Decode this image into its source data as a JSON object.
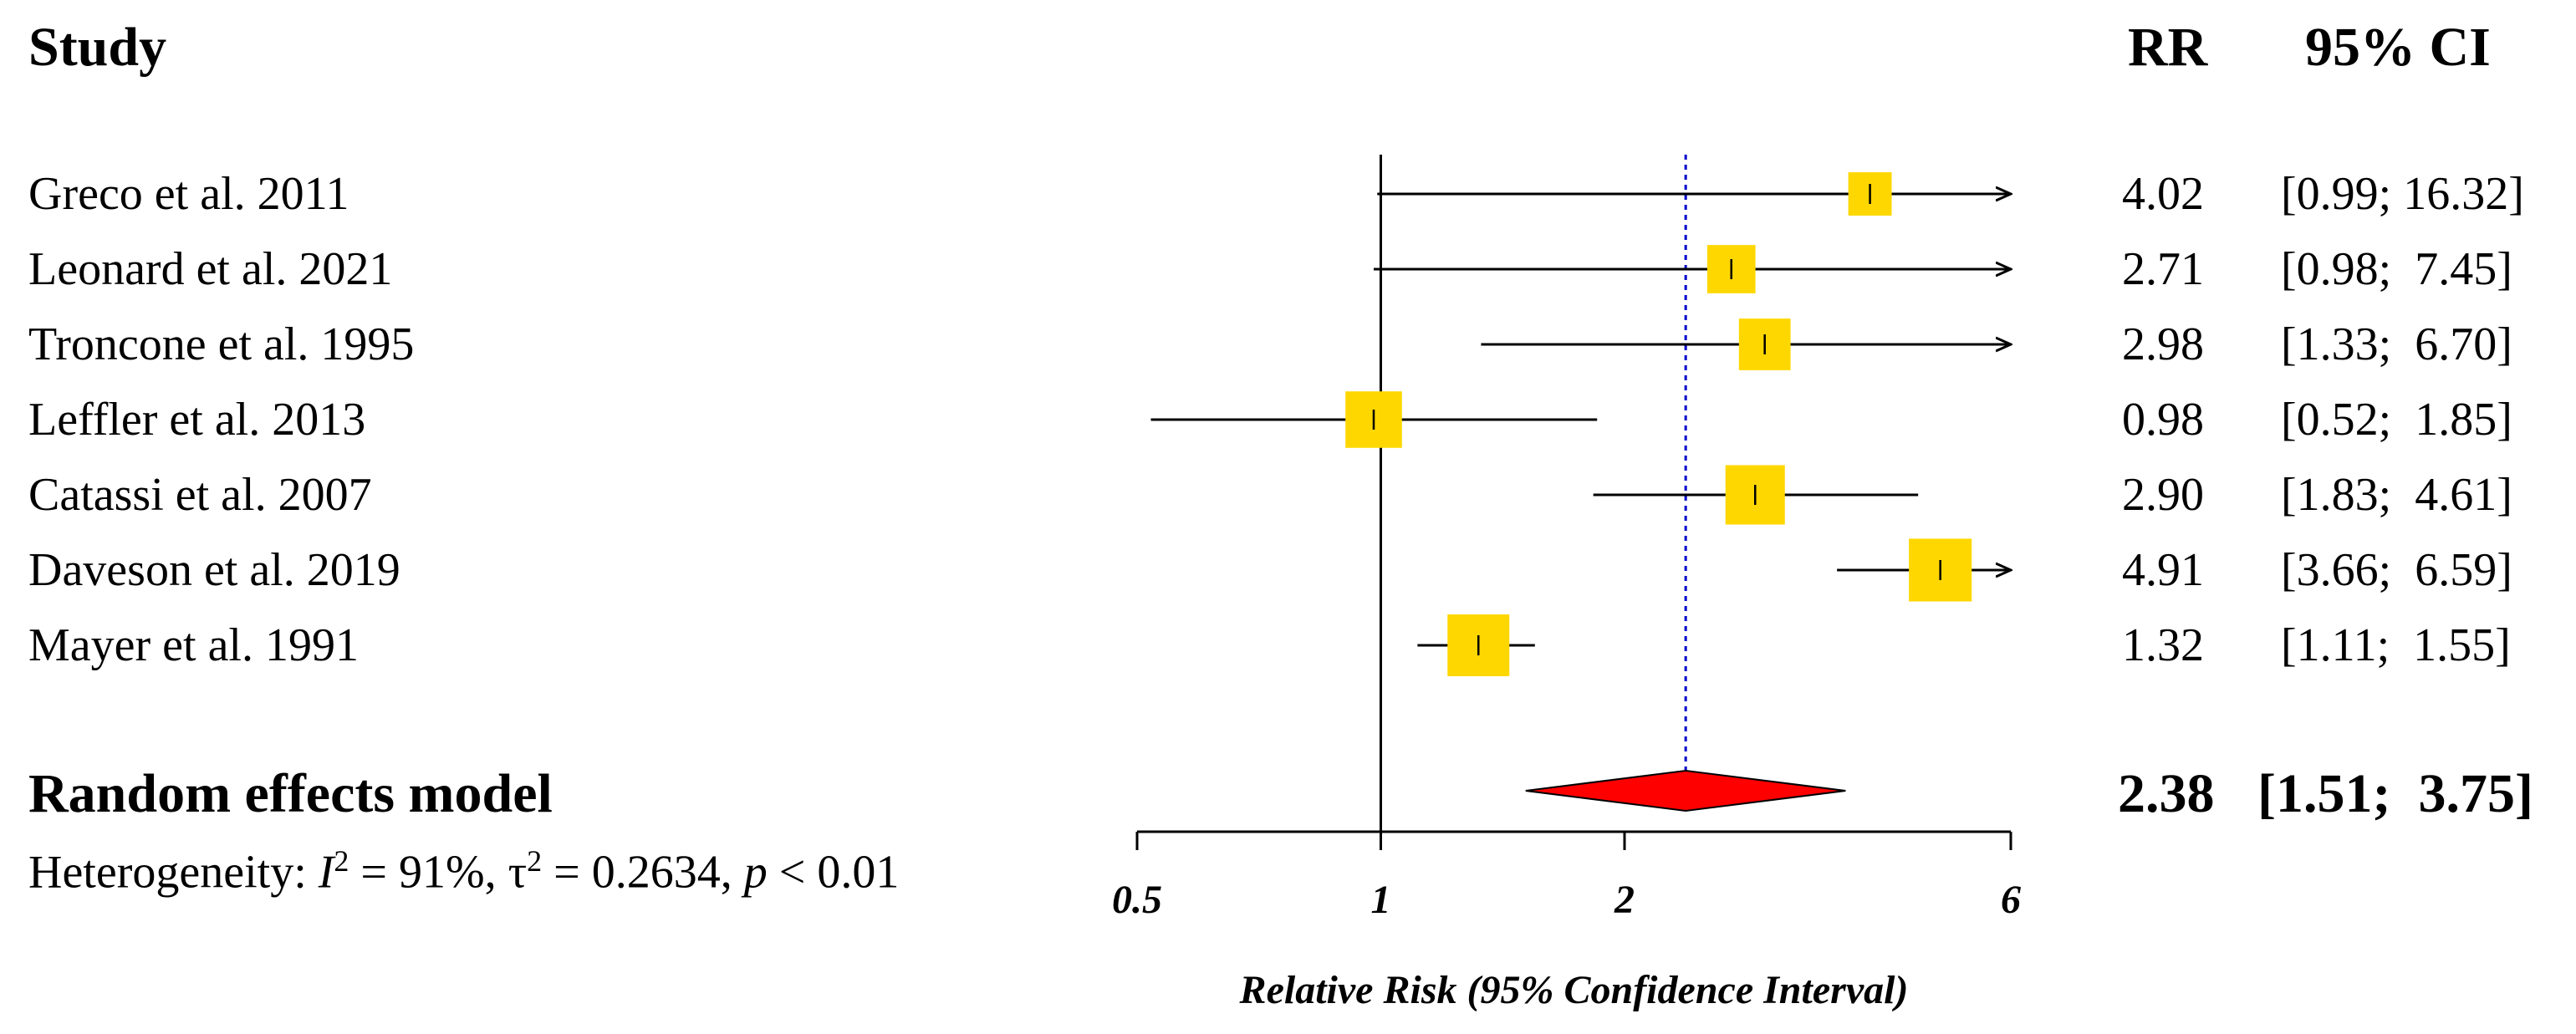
{
  "chart_data": {
    "type": "forest",
    "headers": {
      "study": "Study",
      "rr": "RR",
      "ci": "95% CI"
    },
    "studies": [
      {
        "name": "Greco et al. 2011",
        "rr": 4.02,
        "lower": 0.99,
        "upper": 16.32,
        "rr_text": "4.02",
        "ci_text": "[0.99; 16.32]",
        "weight": 0.55
      },
      {
        "name": "Leonard et al. 2021",
        "rr": 2.71,
        "lower": 0.98,
        "upper": 7.45,
        "rr_text": "2.71",
        "ci_text": "[0.98;  7.45]",
        "weight": 0.65
      },
      {
        "name": "Troncone et al. 1995",
        "rr": 2.98,
        "lower": 1.33,
        "upper": 6.7,
        "rr_text": "2.98",
        "ci_text": "[1.33;  6.70]",
        "weight": 0.72
      },
      {
        "name": "Leffler et al. 2013",
        "rr": 0.98,
        "lower": 0.52,
        "upper": 1.85,
        "rr_text": "0.98",
        "ci_text": "[0.52;  1.85]",
        "weight": 0.82
      },
      {
        "name": "Catassi et al. 2007",
        "rr": 2.9,
        "lower": 1.83,
        "upper": 4.61,
        "rr_text": "2.90",
        "ci_text": "[1.83;  4.61]",
        "weight": 0.88
      },
      {
        "name": "Daveson et al. 2019",
        "rr": 4.91,
        "lower": 3.66,
        "upper": 6.59,
        "rr_text": "4.91",
        "ci_text": "[3.66;  6.59]",
        "weight": 0.95
      },
      {
        "name": "Mayer et al. 1991",
        "rr": 1.32,
        "lower": 1.11,
        "upper": 1.55,
        "rr_text": "1.32",
        "ci_text": "[1.11;  1.55]",
        "weight": 0.93
      }
    ],
    "pooled": {
      "label": "Random effects model",
      "rr": 2.38,
      "lower": 1.51,
      "upper": 3.75,
      "rr_text": "2.38",
      "ci_text": "[1.51;  3.75]"
    },
    "heterogeneity": {
      "prefix": "Heterogeneity: ",
      "i2_symbol": "I",
      "i2_sup": "2",
      "i2_value": " = 91%, τ",
      "tau_sup": "2",
      "tau_value": " = 0.2634, ",
      "p_symbol": "p",
      "p_value": " < 0.01"
    },
    "xaxis": {
      "scale": "log",
      "xlim": [
        0.5,
        6
      ],
      "ticks": [
        0.5,
        1,
        2,
        6
      ],
      "tick_labels": [
        "0.5",
        "1",
        "2",
        "6"
      ],
      "xlabel": "Relative Risk (95% Confidence Interval)",
      "reference": 1
    },
    "colors": {
      "square": "#FFD700",
      "diamond": "#FF0000",
      "pooled_line": "#0000CC",
      "line": "#000000"
    }
  }
}
